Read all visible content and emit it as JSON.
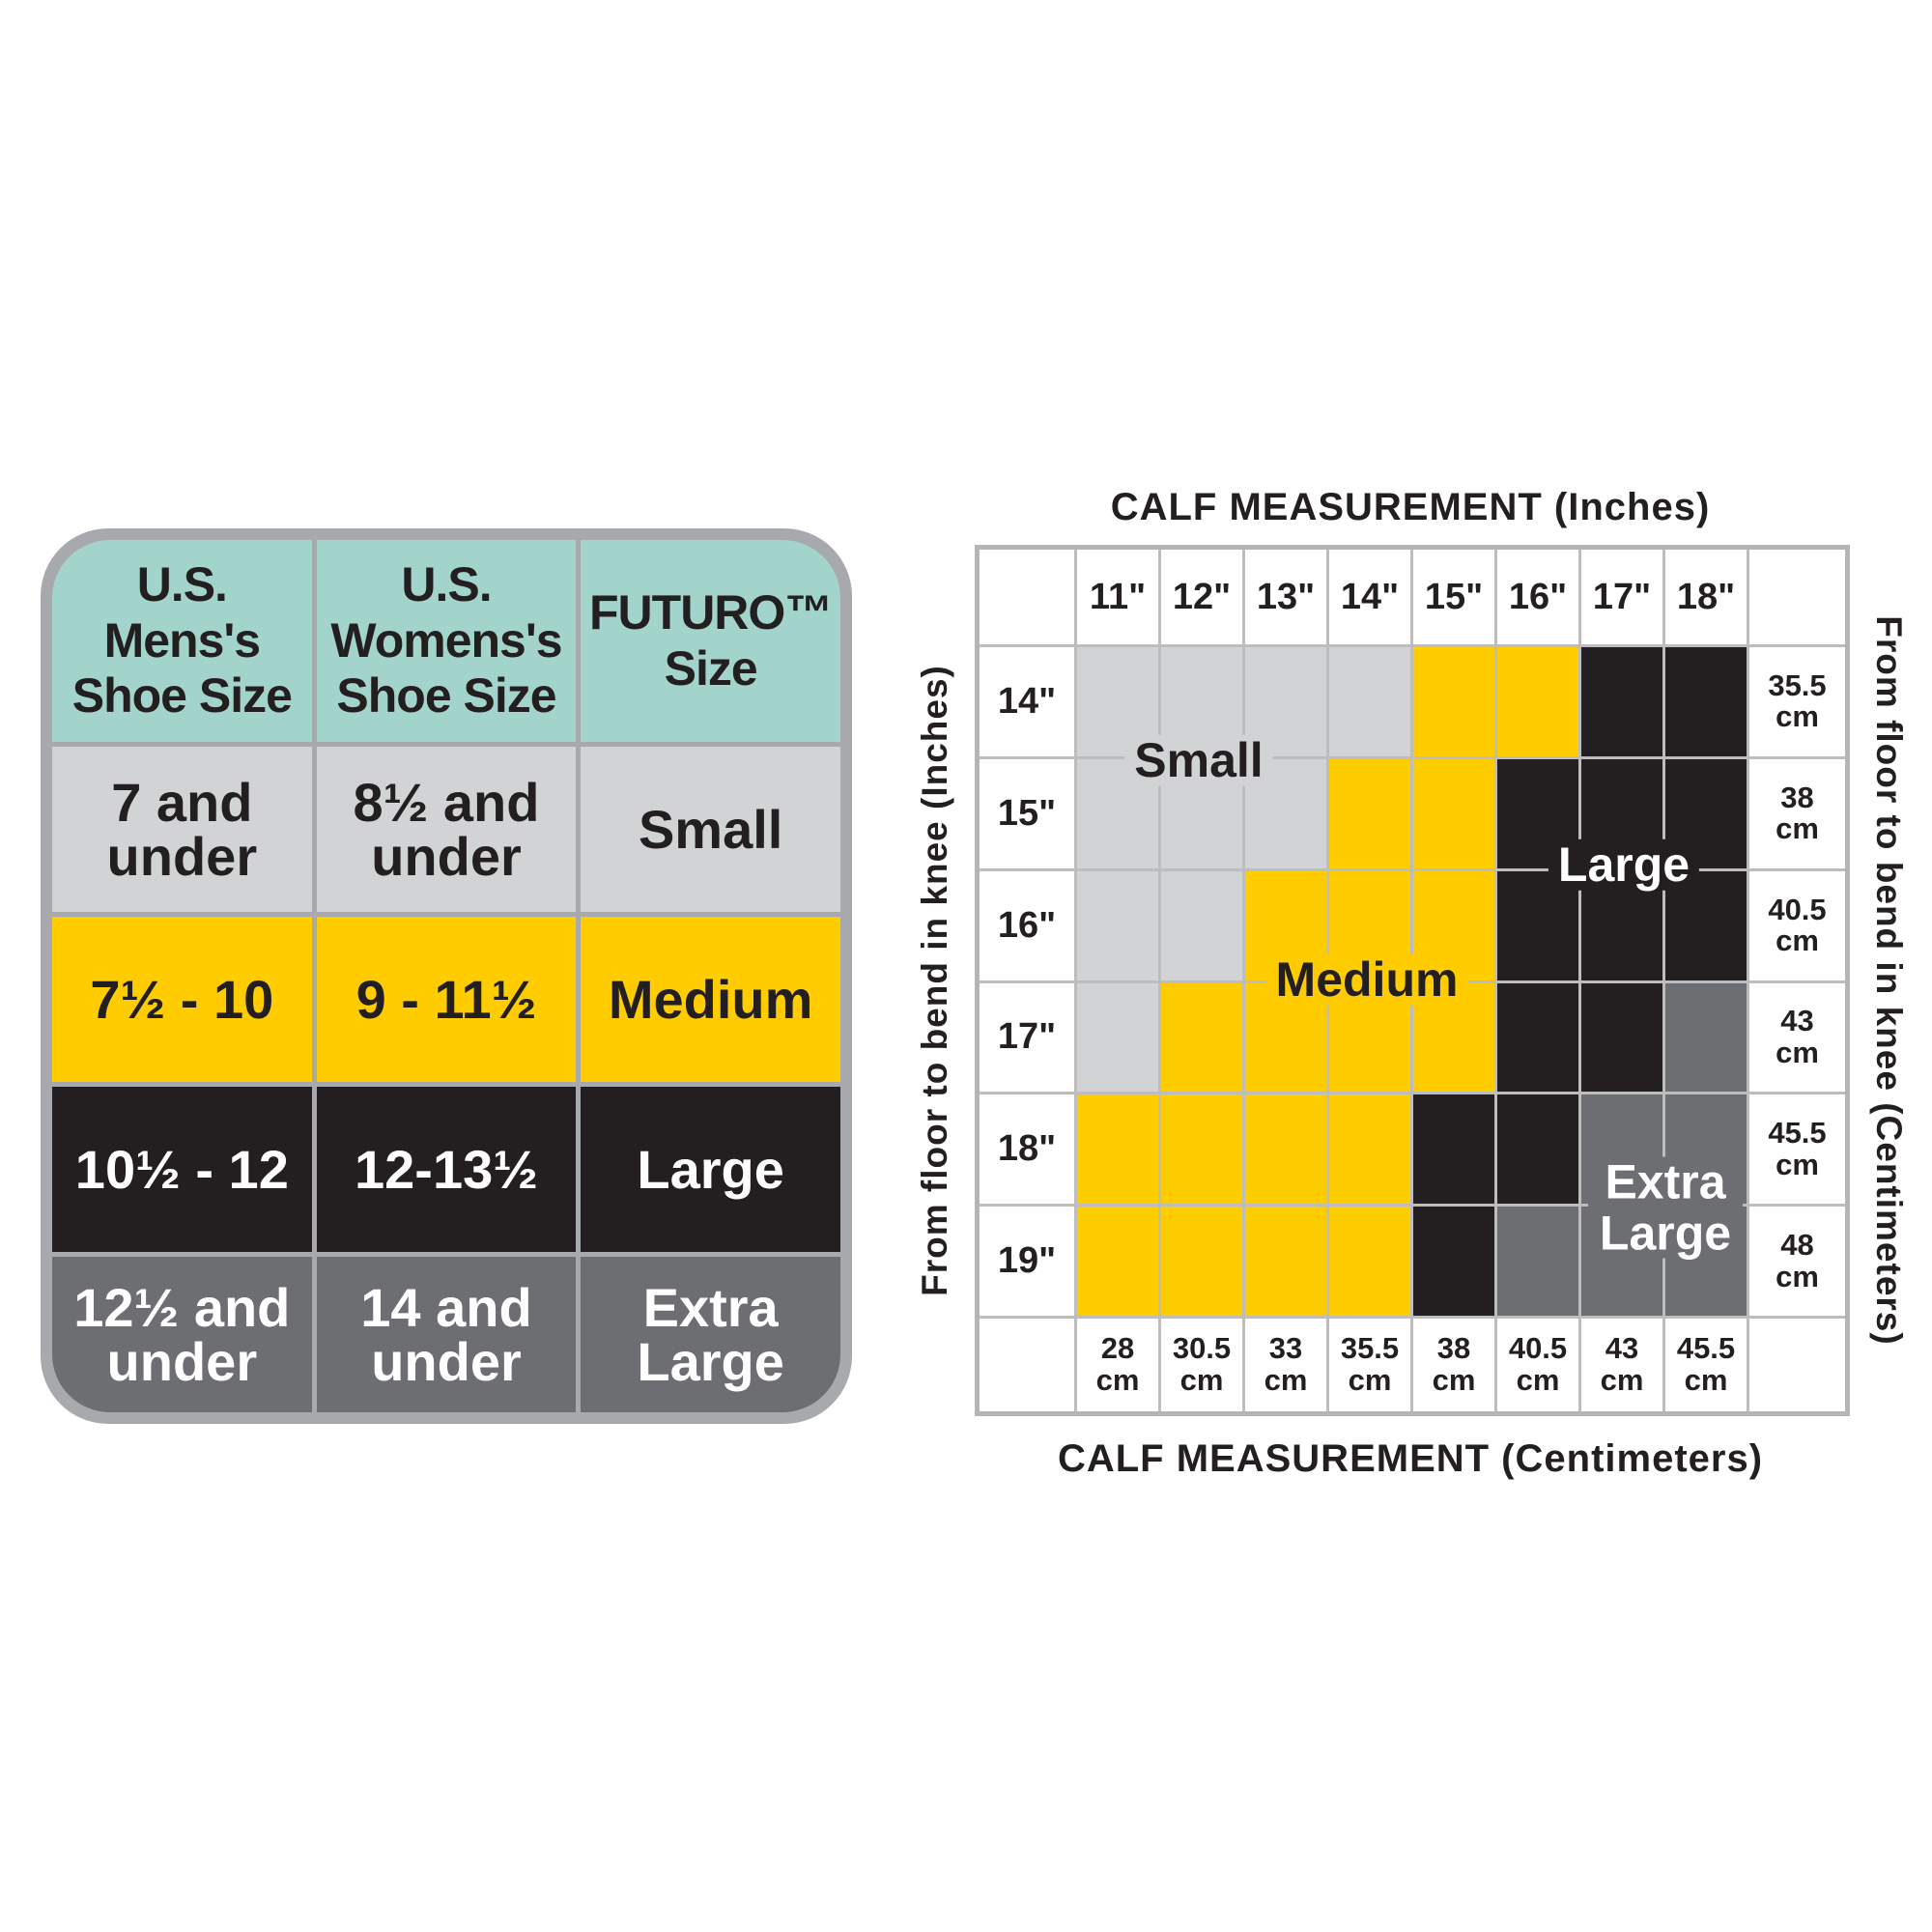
{
  "colors": {
    "teal": "#a3d4cc",
    "small": "#d1d3d4",
    "medium": "#ffcc00",
    "large": "#231f20",
    "xlarge": "#6d6e71"
  },
  "shoe_table": {
    "headers": [
      [
        "U.S.",
        "Mens's",
        "Shoe Size"
      ],
      [
        "U.S.",
        "Womens's",
        "Shoe Size"
      ],
      [
        "FUTURO™",
        "Size"
      ]
    ],
    "rows": [
      {
        "size": "small",
        "cells": [
          [
            "7 and",
            "under"
          ],
          [
            "8½ and",
            "under"
          ],
          [
            "Small"
          ]
        ]
      },
      {
        "size": "medium",
        "cells": [
          [
            "7½ - 10"
          ],
          [
            "9 - 11½"
          ],
          [
            "Medium"
          ]
        ]
      },
      {
        "size": "large",
        "cells": [
          [
            "10½ - 12"
          ],
          [
            "12-13½"
          ],
          [
            "Large"
          ]
        ]
      },
      {
        "size": "xlarge",
        "cells": [
          [
            "12½ and",
            "under"
          ],
          [
            "14 and",
            "under"
          ],
          [
            "Extra",
            "Large"
          ]
        ]
      }
    ]
  },
  "chart_data": {
    "type": "heatmap",
    "title": "CALF MEASUREMENT (Inches)",
    "xlabel": "CALF MEASUREMENT (Centimeters)",
    "ylabel": "From floor to bend in knee (Inches)",
    "ylabel_right": "From floor to bend in knee (Centimeters)",
    "x_inches": [
      "11\"",
      "12\"",
      "13\"",
      "14\"",
      "15\"",
      "16\"",
      "17\"",
      "18\""
    ],
    "x_cm": [
      "28 cm",
      "30.5 cm",
      "33 cm",
      "35.5 cm",
      "38 cm",
      "40.5 cm",
      "43 cm",
      "45.5 cm"
    ],
    "y_inches": [
      "14\"",
      "15\"",
      "16\"",
      "17\"",
      "18\"",
      "19\""
    ],
    "y_cm": [
      "35.5 cm",
      "38 cm",
      "40.5 cm",
      "43 cm",
      "45.5 cm",
      "48 cm"
    ],
    "cells": [
      [
        "small",
        "small",
        "small",
        "small",
        "medium",
        "medium",
        "large",
        "large"
      ],
      [
        "small",
        "small",
        "small",
        "medium",
        "medium",
        "large",
        "large",
        "large"
      ],
      [
        "small",
        "small",
        "medium",
        "medium",
        "medium",
        "large",
        "large",
        "large"
      ],
      [
        "small",
        "medium",
        "medium",
        "medium",
        "medium",
        "large",
        "large",
        "xlarge"
      ],
      [
        "medium",
        "medium",
        "medium",
        "medium",
        "large",
        "large",
        "xlarge",
        "xlarge"
      ],
      [
        "medium",
        "medium",
        "medium",
        "medium",
        "large",
        "xlarge",
        "xlarge",
        "xlarge"
      ]
    ],
    "regions": {
      "small": "Small",
      "medium": "Medium",
      "large": "Large",
      "xlarge": "Extra Large"
    }
  }
}
